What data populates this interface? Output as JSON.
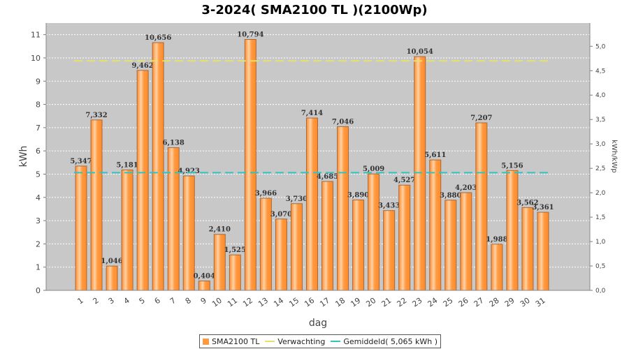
{
  "chart_data": {
    "type": "bar",
    "title": "3-2024( SMA2100 TL )(2100Wp)",
    "xlabel": "dag",
    "ylabel": "kWh",
    "ylabel_right": "kWh/kWp",
    "ylim": [
      0,
      11.5
    ],
    "ylim_right": [
      0,
      5.476
    ],
    "yticks": [
      0,
      1,
      2,
      3,
      4,
      5,
      6,
      7,
      8,
      9,
      10,
      11
    ],
    "yticks_right": [
      "0,0",
      "0,5",
      "1,0",
      "1,5",
      "2,0",
      "2,5",
      "3,0",
      "3,5",
      "4,0",
      "4,5",
      "5,0"
    ],
    "grid": true,
    "legend_position": "bottom",
    "categories": [
      "1",
      "2",
      "3",
      "4",
      "5",
      "6",
      "7",
      "8",
      "9",
      "10",
      "11",
      "12",
      "13",
      "14",
      "15",
      "16",
      "17",
      "18",
      "19",
      "20",
      "21",
      "22",
      "23",
      "24",
      "25",
      "26",
      "27",
      "28",
      "29",
      "30",
      "31"
    ],
    "series": [
      {
        "name": "SMA2100 TL",
        "type": "bar",
        "color": "#ff9a40",
        "values": [
          5.347,
          7.332,
          1.046,
          5.181,
          9.462,
          10.656,
          6.138,
          4.923,
          0.404,
          2.41,
          1.525,
          10.794,
          3.966,
          3.07,
          3.73,
          7.414,
          4.685,
          7.046,
          3.89,
          5.009,
          3.433,
          4.527,
          10.054,
          5.611,
          3.88,
          4.203,
          7.207,
          1.988,
          5.156,
          3.562,
          3.361
        ],
        "labels": [
          "5,347",
          "7,332",
          "1,046",
          "5,181",
          "9,462",
          "10,656",
          "6,138",
          "4,923",
          "0,404",
          "2,410",
          "1,525",
          "10,794",
          "3,966",
          "3,070",
          "3,730",
          "7,414",
          "4,685",
          "7,046",
          "3,890",
          "5,009",
          "3,433",
          "4,527",
          "10,054",
          "5,611",
          "3,880",
          "4,203",
          "7,207",
          "1,988",
          "5,156",
          "3,562",
          "3,361"
        ]
      },
      {
        "name": "Verwachting",
        "type": "line",
        "style": "dashed",
        "color": "#e8e06a",
        "value": 9.87
      },
      {
        "name": "Gemiddeld( 5,065 kWh )",
        "type": "line",
        "style": "dashed",
        "color": "#2ec4c4",
        "value": 5.065
      }
    ]
  },
  "colors": {
    "plot_background": "#c8c8c8",
    "bar_fill": "#ff9a40",
    "bar_highlight": "#ffd2a6",
    "bar_border": "#a86a3a",
    "expected_line": "#e8e06a",
    "average_line": "#2ec4c4"
  }
}
